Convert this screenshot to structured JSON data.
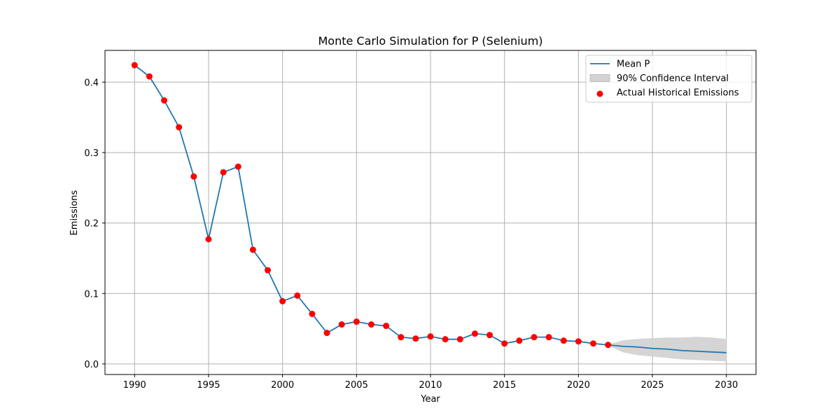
{
  "chart_data": {
    "type": "line",
    "title": "Monte Carlo Simulation for P (Selenium)",
    "xlabel": "Year",
    "ylabel": "Emissions",
    "xlim": [
      1988,
      2032
    ],
    "ylim": [
      -0.015,
      0.445
    ],
    "xticks": [
      1990,
      1995,
      2000,
      2005,
      2010,
      2015,
      2020,
      2025,
      2030
    ],
    "yticks": [
      0.0,
      0.1,
      0.2,
      0.3,
      0.4
    ],
    "ytick_labels": [
      "0.0",
      "0.1",
      "0.2",
      "0.3",
      "0.4"
    ],
    "grid": true,
    "legend_position": "top-right",
    "colors": {
      "mean_line": "#1f77b4",
      "scatter": "#ff0000",
      "band": "#d3d3d3"
    },
    "series": [
      {
        "name": "Mean P",
        "kind": "line",
        "x": [
          1990,
          1991,
          1992,
          1993,
          1994,
          1995,
          1996,
          1997,
          1998,
          1999,
          2000,
          2001,
          2002,
          2003,
          2004,
          2005,
          2006,
          2007,
          2008,
          2009,
          2010,
          2011,
          2012,
          2013,
          2014,
          2015,
          2016,
          2017,
          2018,
          2019,
          2020,
          2021,
          2022,
          2023,
          2024,
          2025,
          2026,
          2027,
          2028,
          2029,
          2030
        ],
        "y": [
          0.424,
          0.408,
          0.374,
          0.336,
          0.266,
          0.177,
          0.272,
          0.28,
          0.162,
          0.133,
          0.089,
          0.097,
          0.071,
          0.044,
          0.056,
          0.06,
          0.056,
          0.054,
          0.038,
          0.036,
          0.039,
          0.035,
          0.035,
          0.043,
          0.041,
          0.029,
          0.033,
          0.038,
          0.038,
          0.033,
          0.032,
          0.029,
          0.027,
          0.025,
          0.024,
          0.022,
          0.021,
          0.019,
          0.018,
          0.017,
          0.016
        ]
      },
      {
        "name": "90% Confidence Interval",
        "kind": "band",
        "x": [
          2022,
          2023,
          2024,
          2025,
          2026,
          2027,
          2028,
          2029,
          2030
        ],
        "lower": [
          0.027,
          0.017,
          0.013,
          0.011,
          0.009,
          0.007,
          0.006,
          0.005,
          0.004
        ],
        "upper": [
          0.027,
          0.033,
          0.035,
          0.036,
          0.037,
          0.037,
          0.038,
          0.037,
          0.035
        ]
      },
      {
        "name": "Actual Historical Emissions",
        "kind": "scatter",
        "x": [
          1990,
          1991,
          1992,
          1993,
          1994,
          1995,
          1996,
          1997,
          1998,
          1999,
          2000,
          2001,
          2002,
          2003,
          2004,
          2005,
          2006,
          2007,
          2008,
          2009,
          2010,
          2011,
          2012,
          2013,
          2014,
          2015,
          2016,
          2017,
          2018,
          2019,
          2020,
          2021,
          2022
        ],
        "y": [
          0.424,
          0.408,
          0.374,
          0.336,
          0.266,
          0.177,
          0.272,
          0.28,
          0.162,
          0.133,
          0.089,
          0.097,
          0.071,
          0.044,
          0.056,
          0.06,
          0.056,
          0.054,
          0.038,
          0.036,
          0.039,
          0.035,
          0.035,
          0.043,
          0.041,
          0.029,
          0.033,
          0.038,
          0.038,
          0.033,
          0.032,
          0.029,
          0.027
        ]
      }
    ]
  }
}
